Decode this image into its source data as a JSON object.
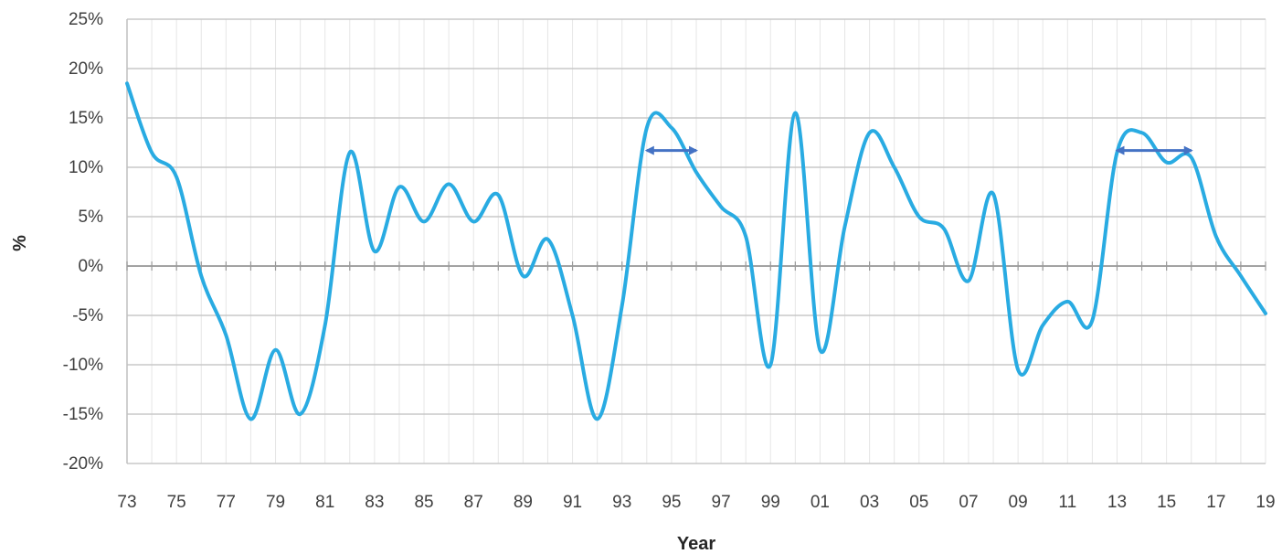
{
  "chart_data": {
    "type": "line",
    "xlabel": "Year",
    "ylabel": "%",
    "ylim": [
      -20,
      25
    ],
    "xlim": [
      1973,
      2019
    ],
    "y_ticks": [
      -20,
      -15,
      -10,
      -5,
      0,
      5,
      10,
      15,
      20,
      25
    ],
    "y_tick_labels": [
      "-20%",
      "-15%",
      "-10%",
      "-5%",
      "0%",
      "5%",
      "10%",
      "15%",
      "20%",
      "25%"
    ],
    "x_tick_labels": [
      "73",
      "75",
      "77",
      "79",
      "81",
      "83",
      "85",
      "87",
      "89",
      "91",
      "93",
      "95",
      "97",
      "99",
      "01",
      "03",
      "05",
      "07",
      "09",
      "11",
      "13",
      "15",
      "17",
      "19"
    ],
    "grid": "both",
    "series": [
      {
        "color": "#29ABE2",
        "x": [
          1973,
          1974,
          1975,
          1976,
          1977,
          1978,
          1979,
          1980,
          1981,
          1982,
          1983,
          1984,
          1985,
          1986,
          1987,
          1988,
          1989,
          1990,
          1991,
          1992,
          1993,
          1994,
          1995,
          1996,
          1997,
          1998,
          1999,
          2000,
          2001,
          2002,
          2003,
          2004,
          2005,
          2006,
          2007,
          2008,
          2009,
          2010,
          2011,
          2012,
          2013,
          2014,
          2015,
          2016,
          2017,
          2018,
          2019
        ],
        "values": [
          18.5,
          11.5,
          9,
          -1,
          -7,
          -15.5,
          -8.5,
          -15,
          -6,
          11.5,
          1.5,
          8,
          4.5,
          8.3,
          4.5,
          7.2,
          -1,
          2.7,
          -5,
          -15.5,
          -4,
          14,
          14,
          9.5,
          6,
          3,
          -10,
          15.5,
          -8.5,
          4,
          13.5,
          10,
          5,
          3.8,
          -1.5,
          7.3,
          -10.5,
          -6,
          -3.6,
          -5.5,
          11.5,
          13.5,
          10.5,
          11,
          3,
          -1,
          -4.8
        ]
      }
    ],
    "annotations": [
      {
        "type": "double-arrow",
        "x_start": 1994,
        "x_end": 1996,
        "y": 11.7,
        "color": "#4472C4"
      },
      {
        "type": "double-arrow",
        "x_start": 2013,
        "x_end": 2016,
        "y": 11.7,
        "color": "#4472C4"
      }
    ]
  }
}
